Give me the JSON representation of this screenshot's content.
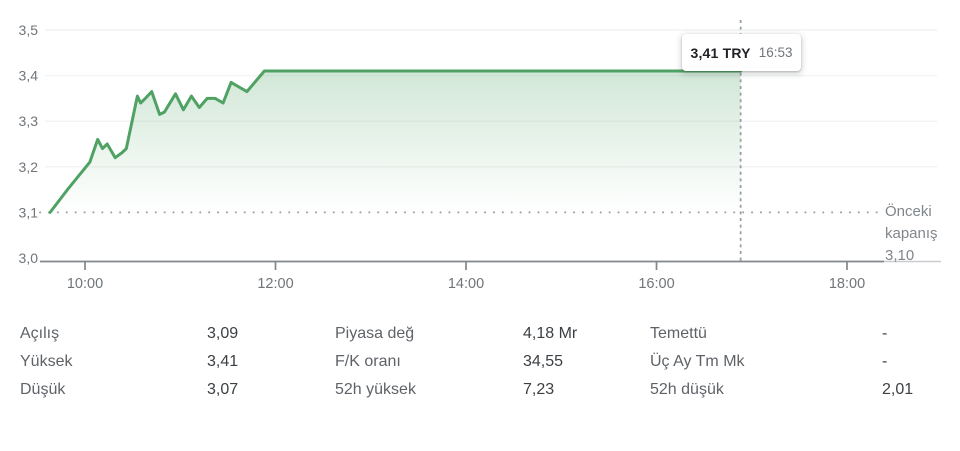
{
  "chart_data": {
    "type": "area",
    "title": "Intraday stock price chart",
    "currency": "TRY",
    "x": [
      "09:38",
      "09:49",
      "10:03",
      "10:08",
      "10:11",
      "10:14",
      "10:19",
      "10:23",
      "10:26",
      "10:33",
      "10:35",
      "10:38",
      "10:42",
      "10:47",
      "10:50",
      "10:57",
      "11:02",
      "11:07",
      "11:12",
      "11:17",
      "11:22",
      "11:27",
      "11:32",
      "11:37",
      "11:42",
      "11:53",
      "16:53"
    ],
    "values": [
      3.1,
      3.15,
      3.21,
      3.26,
      3.24,
      3.25,
      3.22,
      3.23,
      3.24,
      3.355,
      3.34,
      3.35,
      3.365,
      3.315,
      3.32,
      3.36,
      3.325,
      3.355,
      3.33,
      3.35,
      3.35,
      3.34,
      3.385,
      3.375,
      3.365,
      3.41,
      3.41
    ],
    "ylim": [
      3.0,
      3.5
    ],
    "previous_close": 3.1,
    "last_value": 3.41,
    "last_time": "16:53",
    "y_ticks": [
      {
        "label": "3,5",
        "value": 3.5,
        "line": "solid"
      },
      {
        "label": "3,4",
        "value": 3.4,
        "line": "solid"
      },
      {
        "label": "3,3",
        "value": 3.3,
        "line": "solid"
      },
      {
        "label": "3,2",
        "value": 3.2,
        "line": "solid"
      },
      {
        "label": "3,1",
        "value": 3.1,
        "line": "dotted"
      },
      {
        "label": "3,0",
        "value": 3.0,
        "line": "none"
      }
    ],
    "x_ticks": [
      {
        "label": "10:00",
        "time": "10:00"
      },
      {
        "label": "12:00",
        "time": "12:00"
      },
      {
        "label": "14:00",
        "time": "14:00"
      },
      {
        "label": "16:00",
        "time": "16:00"
      },
      {
        "label": "18:00",
        "time": "18:00"
      }
    ],
    "layout": {
      "t0": "10:00",
      "x_at_t0": 85,
      "t1": "18:00",
      "x_at_t1": 847,
      "v_top": 3.5,
      "y_top": 30,
      "v_bottom": 3.0,
      "y_bottom": 258,
      "plot_left": 45,
      "plot_right": 937,
      "dot_left": 40,
      "dot_right": 877,
      "axis_y": 261.5,
      "axis_left": 40,
      "axis_right": 884,
      "axis_ext_right": 941,
      "ylabel_x": 38,
      "xlabel_y": 288,
      "dash_top": 20,
      "grid_on": true,
      "legend": "none"
    },
    "colors": {
      "line": "#4fa264",
      "fill_top": "rgba(79,162,100,0.26)",
      "fill_bottom": "rgba(79,162,100,0)",
      "grid": "#f1f3f4",
      "axis": "#80868b",
      "axis_ext": "#c9ccd0",
      "dotted": "#9aa0a6",
      "dashed": "#9aa0a6",
      "tick_label": "#70757a"
    }
  },
  "tooltip": {
    "price": "3,41 TRY",
    "time": "16:53"
  },
  "prev_close_label": {
    "line1": "Önceki",
    "line2": "kapanış",
    "line3": "3,10"
  },
  "stats": {
    "rows": [
      {
        "l1": "Açılış",
        "v1": "3,09",
        "l2": "Piyasa değ",
        "v2": "4,18 Mr",
        "l3": "Temettü",
        "v3": "-"
      },
      {
        "l1": "Yüksek",
        "v1": "3,41",
        "l2": "F/K oranı",
        "v2": "34,55",
        "l3": "Üç Ay Tm Mk",
        "v3": "-"
      },
      {
        "l1": "Düşük",
        "v1": "3,07",
        "l2": "52h yüksek",
        "v2": "7,23",
        "l3": "52h düşük",
        "v3": "2,01"
      }
    ]
  }
}
